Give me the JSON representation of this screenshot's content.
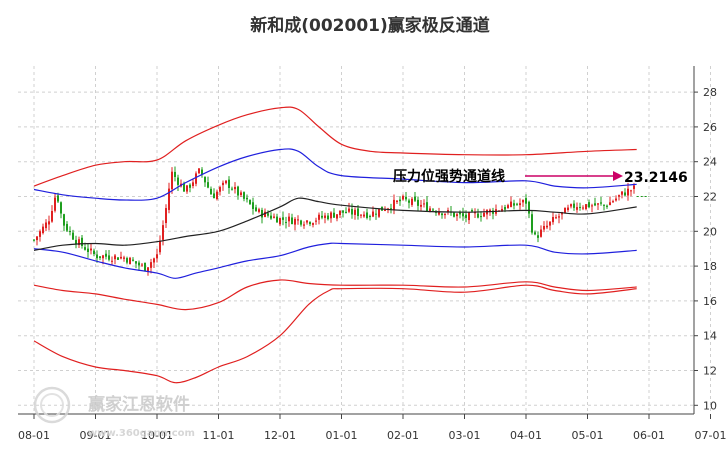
{
  "chart_data": {
    "type": "candlestick",
    "title": "新和成(002001)赢家极反通道",
    "x_ticks": [
      "08-01",
      "09-01",
      "10-01",
      "11-01",
      "12-01",
      "01-01",
      "02-01",
      "03-01",
      "04-01",
      "05-01",
      "06-01",
      "07-01"
    ],
    "y_ticks": [
      10,
      12,
      14,
      16,
      18,
      20,
      22,
      24,
      26,
      28
    ],
    "ylim": [
      9.5,
      29.5
    ],
    "annotation": {
      "label": "压力位强势通道线",
      "value": "23.2146",
      "color": "#cc0066"
    },
    "up_color": "#e02020",
    "down_color": "#1e9e1e",
    "series": [
      {
        "name": "",
        "color": "#e02020",
        "points": [
          [
            "08-01",
            16.9
          ],
          [
            "08-15",
            16.6
          ],
          [
            "09-01",
            16.4
          ],
          [
            "09-15",
            16.1
          ],
          [
            "10-01",
            15.8
          ],
          [
            "10-15",
            15.5
          ],
          [
            "11-01",
            15.9
          ],
          [
            "11-15",
            16.8
          ],
          [
            "12-01",
            17.2
          ],
          [
            "12-15",
            17.0
          ],
          [
            "01-01",
            16.9
          ],
          [
            "02-01",
            16.9
          ],
          [
            "03-01",
            16.8
          ],
          [
            "04-01",
            17.1
          ],
          [
            "04-15",
            16.8
          ],
          [
            "05-01",
            16.6
          ],
          [
            "05-25",
            16.8
          ]
        ]
      },
      {
        "name": "",
        "color": "#e02020",
        "points": [
          [
            "08-01",
            13.7
          ],
          [
            "08-15",
            12.8
          ],
          [
            "09-01",
            12.2
          ],
          [
            "09-15",
            12.0
          ],
          [
            "10-01",
            11.7
          ],
          [
            "10-10",
            11.3
          ],
          [
            "10-20",
            11.6
          ],
          [
            "11-01",
            12.2
          ],
          [
            "11-15",
            12.8
          ],
          [
            "12-01",
            14.0
          ],
          [
            "12-15",
            15.8
          ],
          [
            "12-25",
            16.6
          ],
          [
            "01-01",
            16.7
          ],
          [
            "02-01",
            16.7
          ],
          [
            "03-01",
            16.5
          ],
          [
            "04-01",
            16.9
          ],
          [
            "04-15",
            16.6
          ],
          [
            "05-01",
            16.4
          ],
          [
            "05-25",
            16.7
          ]
        ]
      },
      {
        "name": "",
        "color": "#e02020",
        "points": [
          [
            "08-01",
            22.6
          ],
          [
            "08-15",
            23.2
          ],
          [
            "09-01",
            23.8
          ],
          [
            "09-15",
            24.0
          ],
          [
            "10-01",
            24.1
          ],
          [
            "10-15",
            25.2
          ],
          [
            "11-01",
            26.1
          ],
          [
            "11-15",
            26.7
          ],
          [
            "12-01",
            27.1
          ],
          [
            "12-10",
            27.0
          ],
          [
            "12-20",
            26.0
          ],
          [
            "01-01",
            25.0
          ],
          [
            "01-15",
            24.6
          ],
          [
            "02-01",
            24.5
          ],
          [
            "03-01",
            24.4
          ],
          [
            "04-01",
            24.4
          ],
          [
            "05-01",
            24.6
          ],
          [
            "05-25",
            24.7
          ]
        ]
      },
      {
        "name": "",
        "color": "#2020dd",
        "points": [
          [
            "08-01",
            22.4
          ],
          [
            "08-15",
            22.1
          ],
          [
            "09-01",
            21.9
          ],
          [
            "09-15",
            21.8
          ],
          [
            "10-01",
            21.9
          ],
          [
            "10-15",
            22.8
          ],
          [
            "11-01",
            23.7
          ],
          [
            "11-15",
            24.3
          ],
          [
            "12-01",
            24.7
          ],
          [
            "12-10",
            24.6
          ],
          [
            "12-20",
            23.7
          ],
          [
            "01-01",
            23.2
          ],
          [
            "02-01",
            23.0
          ],
          [
            "03-01",
            22.8
          ],
          [
            "04-01",
            22.9
          ],
          [
            "04-15",
            22.6
          ],
          [
            "05-01",
            22.5
          ],
          [
            "05-25",
            22.7
          ]
        ]
      },
      {
        "name": "",
        "color": "#2020dd",
        "points": [
          [
            "08-01",
            19.0
          ],
          [
            "08-15",
            18.8
          ],
          [
            "09-01",
            18.3
          ],
          [
            "09-15",
            17.9
          ],
          [
            "10-01",
            17.6
          ],
          [
            "10-10",
            17.3
          ],
          [
            "10-20",
            17.6
          ],
          [
            "11-01",
            17.9
          ],
          [
            "11-15",
            18.3
          ],
          [
            "12-01",
            18.6
          ],
          [
            "12-15",
            19.1
          ],
          [
            "12-25",
            19.3
          ],
          [
            "01-01",
            19.3
          ],
          [
            "02-01",
            19.2
          ],
          [
            "03-01",
            19.1
          ],
          [
            "04-01",
            19.2
          ],
          [
            "04-15",
            18.8
          ],
          [
            "05-01",
            18.7
          ],
          [
            "05-25",
            18.9
          ]
        ]
      },
      {
        "name": "",
        "color": "#222222",
        "points": [
          [
            "08-01",
            18.9
          ],
          [
            "08-15",
            19.2
          ],
          [
            "09-01",
            19.3
          ],
          [
            "09-15",
            19.2
          ],
          [
            "10-01",
            19.4
          ],
          [
            "10-15",
            19.7
          ],
          [
            "11-01",
            20.0
          ],
          [
            "11-15",
            20.6
          ],
          [
            "12-01",
            21.4
          ],
          [
            "12-10",
            21.9
          ],
          [
            "12-20",
            21.7
          ],
          [
            "01-01",
            21.5
          ],
          [
            "02-01",
            21.2
          ],
          [
            "03-01",
            21.1
          ],
          [
            "04-01",
            21.2
          ],
          [
            "04-15",
            21.1
          ],
          [
            "05-01",
            21.0
          ],
          [
            "05-25",
            21.4
          ]
        ]
      }
    ],
    "resistance_line": {
      "value": 22.0,
      "from": "05-25",
      "to": "06-01",
      "color": "#1e9e1e"
    },
    "price_path": [
      [
        "08-01",
        19.5
      ],
      [
        "08-08",
        20.6
      ],
      [
        "08-12",
        22.3
      ],
      [
        "08-15",
        20.5
      ],
      [
        "08-22",
        19.4
      ],
      [
        "09-01",
        18.6
      ],
      [
        "09-15",
        18.5
      ],
      [
        "09-25",
        17.9
      ],
      [
        "10-01",
        18.6
      ],
      [
        "10-05",
        21.0
      ],
      [
        "10-08",
        23.4
      ],
      [
        "10-15",
        22.3
      ],
      [
        "10-22",
        23.5
      ],
      [
        "10-28",
        22.0
      ],
      [
        "11-05",
        22.8
      ],
      [
        "11-12",
        22.0
      ],
      [
        "11-20",
        21.1
      ],
      [
        "12-01",
        20.7
      ],
      [
        "12-15",
        20.6
      ],
      [
        "01-01",
        21.1
      ],
      [
        "01-15",
        21.0
      ],
      [
        "02-01",
        21.8
      ],
      [
        "02-15",
        21.3
      ],
      [
        "03-01",
        20.8
      ],
      [
        "03-15",
        21.2
      ],
      [
        "04-01",
        21.7
      ],
      [
        "04-05",
        19.6
      ],
      [
        "04-15",
        20.7
      ],
      [
        "04-25",
        21.5
      ],
      [
        "05-10",
        21.5
      ],
      [
        "05-20",
        22.3
      ],
      [
        "05-25",
        22.5
      ]
    ]
  },
  "watermark": {
    "brand": "赢家江恩软件",
    "url": "www.360gann.com"
  }
}
